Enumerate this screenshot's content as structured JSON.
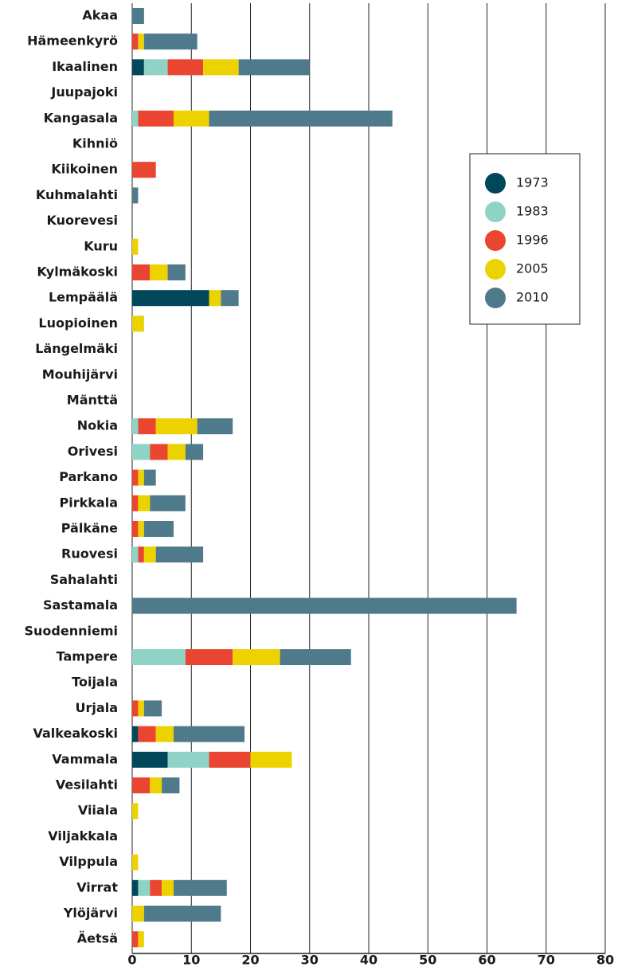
{
  "chart_data": {
    "type": "stacked-barh",
    "categories": [
      "Akaa",
      "Hämeenkyrö",
      "Ikaalinen",
      "Juupajoki",
      "Kangasala",
      "Kihniö",
      "Kiikoinen",
      "Kuhmalahti",
      "Kuorevesi",
      "Kuru",
      "Kylmäkoski",
      "Lempäälä",
      "Luopioinen",
      "Längelmäki",
      "Mouhijärvi",
      "Mänttä",
      "Nokia",
      "Orivesi",
      "Parkano",
      "Pirkkala",
      "Pälkäne",
      "Ruovesi",
      "Sahalahti",
      "Sastamala",
      "Suodenniemi",
      "Tampere",
      "Toijala",
      "Urjala",
      "Valkeakoski",
      "Vammala",
      "Vesilahti",
      "Viiala",
      "Viljakkala",
      "Vilppula",
      "Virrat",
      "Ylöjärvi",
      "Äetsä"
    ],
    "series": [
      {
        "name": "1973",
        "color": "#00475a",
        "values": [
          0,
          0,
          2,
          0,
          0,
          0,
          0,
          0,
          0,
          0,
          0,
          13,
          0,
          0,
          0,
          0,
          0,
          0,
          0,
          0,
          0,
          0,
          0,
          0,
          0,
          0,
          0,
          0,
          1,
          6,
          0,
          0,
          0,
          0,
          1,
          0,
          0
        ]
      },
      {
        "name": "1983",
        "color": "#8fd3c6",
        "values": [
          0,
          0,
          4,
          0,
          1,
          0,
          0,
          0,
          0,
          0,
          0,
          0,
          0,
          0,
          0,
          0,
          1,
          3,
          0,
          0,
          0,
          1,
          0,
          0,
          0,
          9,
          0,
          0,
          0,
          7,
          0,
          0,
          0,
          0,
          2,
          0,
          0
        ]
      },
      {
        "name": "1996",
        "color": "#ea4530",
        "values": [
          0,
          1,
          6,
          0,
          6,
          0,
          4,
          0,
          0,
          0,
          3,
          0,
          0,
          0,
          0,
          0,
          3,
          3,
          1,
          1,
          1,
          1,
          0,
          0,
          0,
          8,
          0,
          1,
          3,
          7,
          3,
          0,
          0,
          0,
          2,
          0,
          1
        ]
      },
      {
        "name": "2005",
        "color": "#ecd300",
        "values": [
          0,
          1,
          6,
          0,
          6,
          0,
          0,
          0,
          0,
          1,
          3,
          2,
          2,
          0,
          0,
          0,
          7,
          3,
          1,
          2,
          1,
          2,
          0,
          0,
          0,
          8,
          0,
          1,
          3,
          7,
          2,
          1,
          0,
          1,
          2,
          2,
          1
        ]
      },
      {
        "name": "2010",
        "color": "#4f7a8b",
        "values": [
          2,
          9,
          12,
          0,
          31,
          0,
          0,
          1,
          0,
          0,
          3,
          3,
          0,
          0,
          0,
          0,
          6,
          3,
          2,
          6,
          5,
          8,
          0,
          65,
          0,
          12,
          0,
          3,
          12,
          0,
          3,
          0,
          0,
          0,
          9,
          13,
          0
        ]
      }
    ],
    "xlim": [
      0,
      80
    ],
    "xticks": [
      0,
      10,
      20,
      30,
      40,
      50,
      60,
      70,
      80
    ],
    "grid": true,
    "legend": "upper right"
  }
}
